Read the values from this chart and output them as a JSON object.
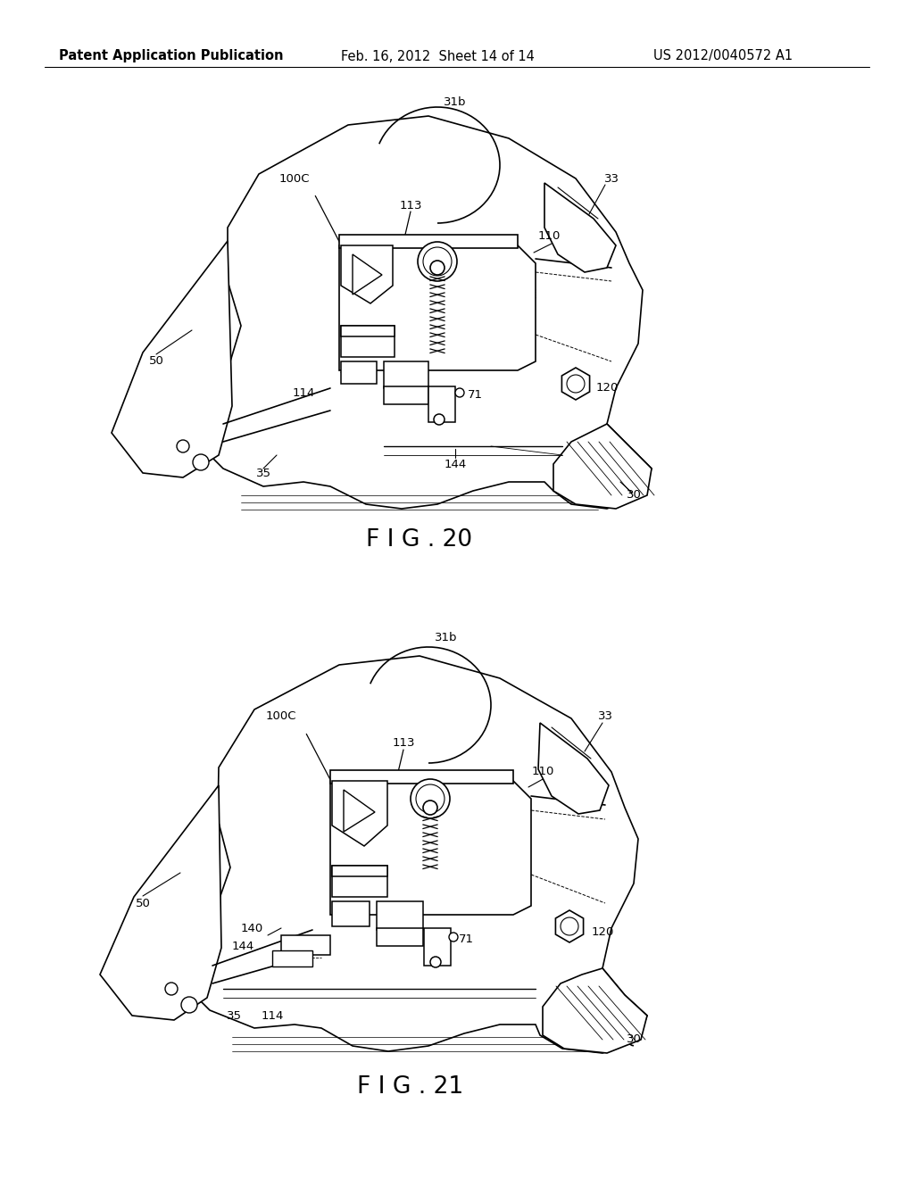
{
  "bg_color": "#ffffff",
  "header_left": "Patent Application Publication",
  "header_center": "Feb. 16, 2012  Sheet 14 of 14",
  "header_right": "US 2012/0040572 A1",
  "fig20_label": "F I G . 20",
  "fig21_label": "F I G . 21",
  "header_fontsize": 10.5,
  "fig_label_fontsize": 19,
  "ref_fontsize": 9.5
}
